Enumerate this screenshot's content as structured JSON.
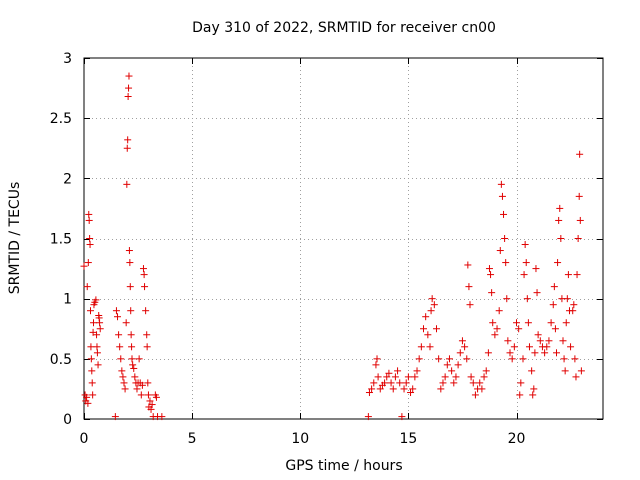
{
  "chart_data": {
    "type": "scatter",
    "title": "Day 310 of 2022, SRMTID for receiver cn00",
    "xlabel": "GPS time / hours",
    "ylabel": "SRMTID / TECUs",
    "xlim": [
      0,
      24
    ],
    "ylim": [
      0,
      3
    ],
    "xticks": [
      0,
      5,
      10,
      15,
      20
    ],
    "xtick_labels": [
      "0",
      "5",
      "10",
      "15",
      "20"
    ],
    "yticks": [
      0,
      0.5,
      1,
      1.5,
      2,
      2.5,
      3
    ],
    "ytick_labels": [
      "0",
      "0.5",
      "1",
      "1.5",
      "2",
      "2.5",
      "3"
    ],
    "grid": true,
    "marker": "+",
    "color": "#e00000",
    "series": [
      {
        "name": "SRMTID",
        "points": [
          [
            0.0,
            1.27
          ],
          [
            0.05,
            0.2
          ],
          [
            0.08,
            0.15
          ],
          [
            0.12,
            0.18
          ],
          [
            0.15,
            1.1
          ],
          [
            0.18,
            0.13
          ],
          [
            0.2,
            1.3
          ],
          [
            0.22,
            1.7
          ],
          [
            0.24,
            1.65
          ],
          [
            0.26,
            1.5
          ],
          [
            0.28,
            1.45
          ],
          [
            0.3,
            0.9
          ],
          [
            0.32,
            0.6
          ],
          [
            0.34,
            0.5
          ],
          [
            0.36,
            0.4
          ],
          [
            0.38,
            0.3
          ],
          [
            0.4,
            0.2
          ],
          [
            0.42,
            0.72
          ],
          [
            0.44,
            0.8
          ],
          [
            0.46,
            0.95
          ],
          [
            0.5,
            0.97
          ],
          [
            0.55,
            0.99
          ],
          [
            0.58,
            0.7
          ],
          [
            0.6,
            0.6
          ],
          [
            0.62,
            0.55
          ],
          [
            0.65,
            0.45
          ],
          [
            0.68,
            0.86
          ],
          [
            0.7,
            0.84
          ],
          [
            0.72,
            0.8
          ],
          [
            0.75,
            0.75
          ],
          [
            1.45,
            0.02
          ],
          [
            1.5,
            0.9
          ],
          [
            1.55,
            0.85
          ],
          [
            1.6,
            0.7
          ],
          [
            1.65,
            0.6
          ],
          [
            1.7,
            0.5
          ],
          [
            1.75,
            0.4
          ],
          [
            1.8,
            0.35
          ],
          [
            1.85,
            0.3
          ],
          [
            1.9,
            0.25
          ],
          [
            1.95,
            0.8
          ],
          [
            1.98,
            1.95
          ],
          [
            2.0,
            2.25
          ],
          [
            2.02,
            2.32
          ],
          [
            2.04,
            2.68
          ],
          [
            2.06,
            2.75
          ],
          [
            2.08,
            2.85
          ],
          [
            2.1,
            1.4
          ],
          [
            2.12,
            1.3
          ],
          [
            2.14,
            1.1
          ],
          [
            2.16,
            0.9
          ],
          [
            2.18,
            0.7
          ],
          [
            2.2,
            0.6
          ],
          [
            2.22,
            0.5
          ],
          [
            2.25,
            0.45
          ],
          [
            2.3,
            0.42
          ],
          [
            2.35,
            0.35
          ],
          [
            2.4,
            0.3
          ],
          [
            2.45,
            0.25
          ],
          [
            2.5,
            0.3
          ],
          [
            2.55,
            0.5
          ],
          [
            2.6,
            0.3
          ],
          [
            2.65,
            0.2
          ],
          [
            2.7,
            0.28
          ],
          [
            2.75,
            1.25
          ],
          [
            2.78,
            1.2
          ],
          [
            2.8,
            1.1
          ],
          [
            2.85,
            0.9
          ],
          [
            2.9,
            0.7
          ],
          [
            2.92,
            0.6
          ],
          [
            2.95,
            0.3
          ],
          [
            2.98,
            0.2
          ],
          [
            3.0,
            0.1
          ],
          [
            3.05,
            0.15
          ],
          [
            3.1,
            0.08
          ],
          [
            3.15,
            0.12
          ],
          [
            3.2,
            0.02
          ],
          [
            3.3,
            0.2
          ],
          [
            3.35,
            0.18
          ],
          [
            3.4,
            0.02
          ],
          [
            3.6,
            0.02
          ],
          [
            13.15,
            0.02
          ],
          [
            13.2,
            0.22
          ],
          [
            13.3,
            0.25
          ],
          [
            13.4,
            0.3
          ],
          [
            13.5,
            0.45
          ],
          [
            13.55,
            0.5
          ],
          [
            13.6,
            0.35
          ],
          [
            13.7,
            0.25
          ],
          [
            13.8,
            0.28
          ],
          [
            13.9,
            0.3
          ],
          [
            14.0,
            0.35
          ],
          [
            14.1,
            0.38
          ],
          [
            14.2,
            0.3
          ],
          [
            14.3,
            0.25
          ],
          [
            14.4,
            0.35
          ],
          [
            14.5,
            0.4
          ],
          [
            14.6,
            0.3
          ],
          [
            14.7,
            0.02
          ],
          [
            14.8,
            0.25
          ],
          [
            14.9,
            0.3
          ],
          [
            15.0,
            0.35
          ],
          [
            15.1,
            0.22
          ],
          [
            15.2,
            0.25
          ],
          [
            15.3,
            0.35
          ],
          [
            15.4,
            0.4
          ],
          [
            15.5,
            0.5
          ],
          [
            15.6,
            0.6
          ],
          [
            15.7,
            0.75
          ],
          [
            15.8,
            0.85
          ],
          [
            15.9,
            0.7
          ],
          [
            16.0,
            0.6
          ],
          [
            16.05,
            0.9
          ],
          [
            16.1,
            1.0
          ],
          [
            16.2,
            0.95
          ],
          [
            16.3,
            0.75
          ],
          [
            16.4,
            0.5
          ],
          [
            16.5,
            0.25
          ],
          [
            16.6,
            0.3
          ],
          [
            16.7,
            0.35
          ],
          [
            16.8,
            0.45
          ],
          [
            16.9,
            0.5
          ],
          [
            17.0,
            0.4
          ],
          [
            17.1,
            0.3
          ],
          [
            17.2,
            0.35
          ],
          [
            17.3,
            0.45
          ],
          [
            17.4,
            0.55
          ],
          [
            17.5,
            0.65
          ],
          [
            17.6,
            0.6
          ],
          [
            17.7,
            0.5
          ],
          [
            17.75,
            1.28
          ],
          [
            17.8,
            1.1
          ],
          [
            17.85,
            0.95
          ],
          [
            17.9,
            0.35
          ],
          [
            18.0,
            0.3
          ],
          [
            18.1,
            0.2
          ],
          [
            18.2,
            0.25
          ],
          [
            18.3,
            0.3
          ],
          [
            18.4,
            0.25
          ],
          [
            18.5,
            0.35
          ],
          [
            18.6,
            0.4
          ],
          [
            18.7,
            0.55
          ],
          [
            18.75,
            1.25
          ],
          [
            18.8,
            1.2
          ],
          [
            18.85,
            1.05
          ],
          [
            18.9,
            0.8
          ],
          [
            19.0,
            0.7
          ],
          [
            19.1,
            0.75
          ],
          [
            19.2,
            0.9
          ],
          [
            19.25,
            1.4
          ],
          [
            19.3,
            1.95
          ],
          [
            19.35,
            1.85
          ],
          [
            19.4,
            1.7
          ],
          [
            19.45,
            1.5
          ],
          [
            19.5,
            1.3
          ],
          [
            19.55,
            1.0
          ],
          [
            19.6,
            0.65
          ],
          [
            19.7,
            0.55
          ],
          [
            19.8,
            0.5
          ],
          [
            19.9,
            0.6
          ],
          [
            20.0,
            0.8
          ],
          [
            20.1,
            0.75
          ],
          [
            20.15,
            0.2
          ],
          [
            20.2,
            0.3
          ],
          [
            20.3,
            0.5
          ],
          [
            20.35,
            1.2
          ],
          [
            20.4,
            1.45
          ],
          [
            20.45,
            1.3
          ],
          [
            20.5,
            1.0
          ],
          [
            20.55,
            0.8
          ],
          [
            20.6,
            0.6
          ],
          [
            20.7,
            0.4
          ],
          [
            20.75,
            0.2
          ],
          [
            20.8,
            0.25
          ],
          [
            20.85,
            0.55
          ],
          [
            20.9,
            1.25
          ],
          [
            20.95,
            1.05
          ],
          [
            21.0,
            0.7
          ],
          [
            21.1,
            0.65
          ],
          [
            21.2,
            0.6
          ],
          [
            21.3,
            0.55
          ],
          [
            21.4,
            0.6
          ],
          [
            21.5,
            0.65
          ],
          [
            21.6,
            0.8
          ],
          [
            21.7,
            0.95
          ],
          [
            21.75,
            1.1
          ],
          [
            21.8,
            0.75
          ],
          [
            21.85,
            0.55
          ],
          [
            21.9,
            1.3
          ],
          [
            21.95,
            1.65
          ],
          [
            22.0,
            1.75
          ],
          [
            22.05,
            1.5
          ],
          [
            22.1,
            1.0
          ],
          [
            22.15,
            0.65
          ],
          [
            22.2,
            0.5
          ],
          [
            22.25,
            0.4
          ],
          [
            22.3,
            0.8
          ],
          [
            22.35,
            1.0
          ],
          [
            22.4,
            1.2
          ],
          [
            22.45,
            0.9
          ],
          [
            22.5,
            0.6
          ],
          [
            22.6,
            0.9
          ],
          [
            22.65,
            0.95
          ],
          [
            22.7,
            0.5
          ],
          [
            22.75,
            0.35
          ],
          [
            22.8,
            1.2
          ],
          [
            22.85,
            1.5
          ],
          [
            22.9,
            1.85
          ],
          [
            22.92,
            2.2
          ],
          [
            22.95,
            1.65
          ],
          [
            23.0,
            0.4
          ]
        ]
      }
    ]
  }
}
